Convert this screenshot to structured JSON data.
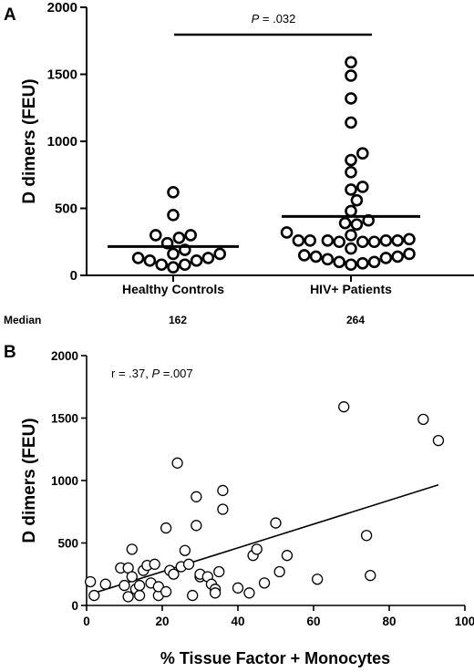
{
  "chart_data": [
    {
      "panel": "A",
      "type": "scatter",
      "ylabel": "D dimers (FEU)",
      "ylim": [
        0,
        2000
      ],
      "yticks": [
        0,
        500,
        1000,
        1500,
        2000
      ],
      "categories": [
        "Healthy Controls",
        "HIV+ Patients"
      ],
      "annotation": {
        "prefix": "P",
        "text": " = .032"
      },
      "median_title": "Median",
      "medians": [
        "162",
        "264"
      ],
      "median_lines": [
        215,
        440
      ],
      "series": [
        {
          "values": [
            620,
            450,
            300,
            280,
            300,
            240,
            190,
            160,
            160,
            130,
            130,
            110,
            110,
            80,
            80,
            60
          ]
        },
        {
          "values": [
            1590,
            1490,
            1320,
            1140,
            910,
            860,
            770,
            660,
            640,
            560,
            480,
            410,
            390,
            380,
            320,
            300,
            270,
            260,
            260,
            260,
            260,
            260,
            250,
            250,
            250,
            200,
            160,
            150,
            140,
            140,
            130,
            120,
            100,
            100,
            90,
            80
          ]
        }
      ]
    },
    {
      "panel": "B",
      "type": "scatter",
      "xlabel": "% Tissue Factor + Monocytes",
      "ylabel": "D dimers (FEU)",
      "xlim": [
        0,
        100
      ],
      "ylim": [
        0,
        2000
      ],
      "xticks": [
        0,
        20,
        40,
        60,
        80,
        100
      ],
      "yticks": [
        0,
        500,
        1000,
        1500,
        2000
      ],
      "annotation": {
        "before": "r = .37, ",
        "prefix": "P",
        "text": " =.007"
      },
      "points": [
        [
          1,
          190
        ],
        [
          2,
          80
        ],
        [
          5,
          170
        ],
        [
          9,
          300
        ],
        [
          10,
          160
        ],
        [
          11,
          70
        ],
        [
          11,
          300
        ],
        [
          12,
          450
        ],
        [
          12,
          230
        ],
        [
          13,
          130
        ],
        [
          14,
          80
        ],
        [
          14,
          160
        ],
        [
          15,
          280
        ],
        [
          16,
          320
        ],
        [
          17,
          180
        ],
        [
          18,
          330
        ],
        [
          19,
          80
        ],
        [
          19,
          150
        ],
        [
          21,
          620
        ],
        [
          21,
          110
        ],
        [
          22,
          280
        ],
        [
          23,
          250
        ],
        [
          24,
          1140
        ],
        [
          25,
          310
        ],
        [
          26,
          440
        ],
        [
          27,
          330
        ],
        [
          28,
          80
        ],
        [
          29,
          870
        ],
        [
          29,
          640
        ],
        [
          30,
          230
        ],
        [
          30,
          250
        ],
        [
          32,
          230
        ],
        [
          33,
          170
        ],
        [
          34,
          130
        ],
        [
          34,
          100
        ],
        [
          35,
          270
        ],
        [
          36,
          920
        ],
        [
          36,
          770
        ],
        [
          40,
          140
        ],
        [
          43,
          100
        ],
        [
          44,
          400
        ],
        [
          45,
          450
        ],
        [
          47,
          180
        ],
        [
          50,
          660
        ],
        [
          51,
          270
        ],
        [
          53,
          400
        ],
        [
          61,
          210
        ],
        [
          68,
          1590
        ],
        [
          74,
          560
        ],
        [
          75,
          240
        ],
        [
          89,
          1490
        ],
        [
          93,
          1320
        ]
      ],
      "regression": {
        "x": [
          1,
          93
        ],
        "y": [
          90,
          965
        ]
      }
    }
  ]
}
